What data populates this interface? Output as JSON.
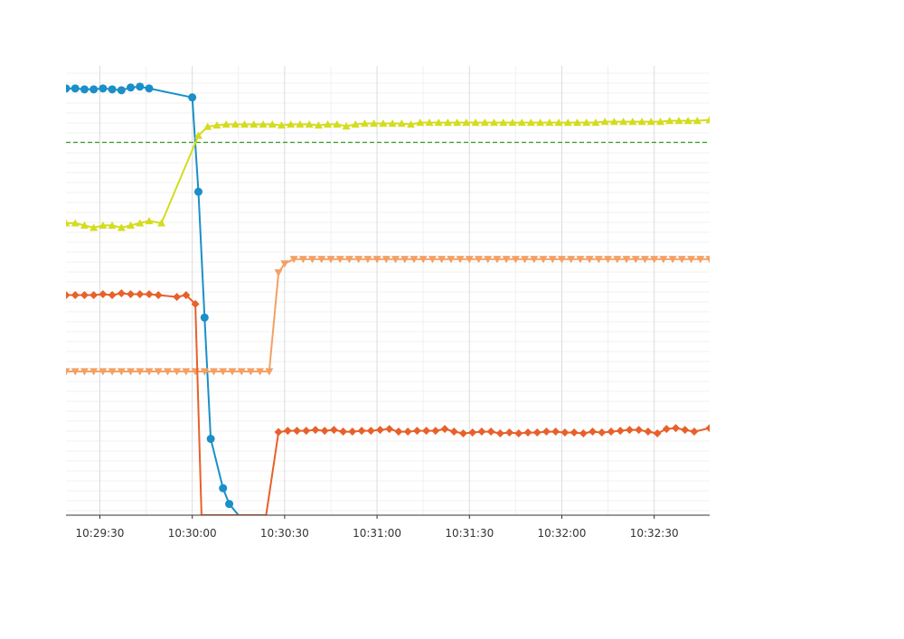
{
  "chart_data": {
    "type": "line",
    "title": "",
    "xlabel": "",
    "ylabel": "",
    "x_tick_labels": [
      "10:29:30",
      "10:30:00",
      "10:30:30",
      "10:31:00",
      "10:31:30",
      "10:32:00",
      "10:32:30"
    ],
    "x_range": [
      "10:29:19",
      "10:32:48"
    ],
    "y_range": [
      0,
      100
    ],
    "grid": true,
    "legend": "none",
    "reference_line": {
      "value": 83,
      "color": "#3a9a2a",
      "style": "dashed"
    },
    "series": [
      {
        "color": "#1a8fc9",
        "marker": "circle",
        "points": [
          [
            "10:29:19",
            95.0
          ],
          [
            "10:29:22",
            95.0
          ],
          [
            "10:29:25",
            94.8
          ],
          [
            "10:29:28",
            94.8
          ],
          [
            "10:29:31",
            95.0
          ],
          [
            "10:29:34",
            94.8
          ],
          [
            "10:29:37",
            94.6
          ],
          [
            "10:29:40",
            95.2
          ],
          [
            "10:29:43",
            95.4
          ],
          [
            "10:29:46",
            95.0
          ],
          [
            "10:30:00",
            93.0
          ],
          [
            "10:30:02",
            72.0
          ],
          [
            "10:30:04",
            44.0
          ],
          [
            "10:30:06",
            17.0
          ],
          [
            "10:30:10",
            6.0
          ],
          [
            "10:30:12",
            2.5
          ],
          [
            "10:30:15",
            0
          ]
        ]
      },
      {
        "color": "#d4dc1c",
        "marker": "triangle-up",
        "points": [
          [
            "10:29:19",
            65.0
          ],
          [
            "10:29:22",
            65.0
          ],
          [
            "10:29:25",
            64.5
          ],
          [
            "10:29:28",
            64.0
          ],
          [
            "10:29:31",
            64.5
          ],
          [
            "10:29:34",
            64.5
          ],
          [
            "10:29:37",
            64.0
          ],
          [
            "10:29:40",
            64.5
          ],
          [
            "10:29:43",
            65.0
          ],
          [
            "10:29:46",
            65.5
          ],
          [
            "10:29:50",
            65.0
          ],
          [
            "10:30:02",
            84.5
          ],
          [
            "10:30:05",
            86.5
          ],
          [
            "10:30:08",
            86.8
          ],
          [
            "10:30:11",
            87.0
          ],
          [
            "10:30:14",
            87.0
          ],
          [
            "10:30:17",
            87.0
          ],
          [
            "10:30:20",
            87.0
          ],
          [
            "10:30:23",
            87.0
          ],
          [
            "10:30:26",
            87.0
          ],
          [
            "10:30:29",
            86.8
          ],
          [
            "10:30:32",
            87.0
          ],
          [
            "10:30:35",
            87.0
          ],
          [
            "10:30:38",
            87.0
          ],
          [
            "10:30:41",
            86.8
          ],
          [
            "10:30:44",
            87.0
          ],
          [
            "10:30:47",
            87.0
          ],
          [
            "10:30:50",
            86.6
          ],
          [
            "10:30:53",
            87.0
          ],
          [
            "10:30:56",
            87.2
          ],
          [
            "10:30:59",
            87.2
          ],
          [
            "10:31:02",
            87.2
          ],
          [
            "10:31:05",
            87.2
          ],
          [
            "10:31:08",
            87.2
          ],
          [
            "10:31:11",
            87.0
          ],
          [
            "10:31:14",
            87.4
          ],
          [
            "10:31:17",
            87.4
          ],
          [
            "10:31:20",
            87.4
          ],
          [
            "10:31:23",
            87.4
          ],
          [
            "10:31:26",
            87.4
          ],
          [
            "10:31:29",
            87.4
          ],
          [
            "10:31:32",
            87.4
          ],
          [
            "10:31:35",
            87.4
          ],
          [
            "10:31:38",
            87.4
          ],
          [
            "10:31:41",
            87.4
          ],
          [
            "10:31:44",
            87.4
          ],
          [
            "10:31:47",
            87.4
          ],
          [
            "10:31:50",
            87.4
          ],
          [
            "10:31:53",
            87.4
          ],
          [
            "10:31:56",
            87.4
          ],
          [
            "10:31:59",
            87.4
          ],
          [
            "10:32:02",
            87.4
          ],
          [
            "10:32:05",
            87.4
          ],
          [
            "10:32:08",
            87.4
          ],
          [
            "10:32:11",
            87.4
          ],
          [
            "10:32:14",
            87.6
          ],
          [
            "10:32:17",
            87.6
          ],
          [
            "10:32:20",
            87.6
          ],
          [
            "10:32:23",
            87.6
          ],
          [
            "10:32:26",
            87.6
          ],
          [
            "10:32:29",
            87.6
          ],
          [
            "10:32:32",
            87.6
          ],
          [
            "10:32:35",
            87.8
          ],
          [
            "10:32:38",
            87.8
          ],
          [
            "10:32:41",
            87.8
          ],
          [
            "10:32:44",
            87.8
          ],
          [
            "10:32:48",
            88.0
          ]
        ]
      },
      {
        "color": "#f4a064",
        "marker": "triangle-down",
        "points": [
          [
            "10:29:19",
            32.0
          ],
          [
            "10:29:22",
            32.0
          ],
          [
            "10:29:25",
            32.0
          ],
          [
            "10:29:28",
            32.0
          ],
          [
            "10:29:31",
            32.0
          ],
          [
            "10:29:34",
            32.0
          ],
          [
            "10:29:37",
            32.0
          ],
          [
            "10:29:40",
            32.0
          ],
          [
            "10:29:43",
            32.0
          ],
          [
            "10:29:46",
            32.0
          ],
          [
            "10:29:49",
            32.0
          ],
          [
            "10:29:52",
            32.0
          ],
          [
            "10:29:55",
            32.0
          ],
          [
            "10:29:58",
            32.0
          ],
          [
            "10:30:01",
            32.0
          ],
          [
            "10:30:04",
            32.0
          ],
          [
            "10:30:07",
            32.0
          ],
          [
            "10:30:10",
            32.0
          ],
          [
            "10:30:13",
            32.0
          ],
          [
            "10:30:16",
            32.0
          ],
          [
            "10:30:19",
            32.0
          ],
          [
            "10:30:22",
            32.0
          ],
          [
            "10:30:25",
            32.0
          ],
          [
            "10:30:28",
            54.0
          ],
          [
            "10:30:30",
            56.0
          ],
          [
            "10:30:33",
            57.0
          ],
          [
            "10:30:36",
            57.0
          ],
          [
            "10:30:39",
            57.0
          ],
          [
            "10:30:42",
            57.0
          ],
          [
            "10:30:45",
            57.0
          ],
          [
            "10:30:48",
            57.0
          ],
          [
            "10:30:51",
            57.0
          ],
          [
            "10:30:54",
            57.0
          ],
          [
            "10:30:57",
            57.0
          ],
          [
            "10:31:00",
            57.0
          ],
          [
            "10:31:03",
            57.0
          ],
          [
            "10:31:06",
            57.0
          ],
          [
            "10:31:09",
            57.0
          ],
          [
            "10:31:12",
            57.0
          ],
          [
            "10:31:15",
            57.0
          ],
          [
            "10:31:18",
            57.0
          ],
          [
            "10:31:21",
            57.0
          ],
          [
            "10:31:24",
            57.0
          ],
          [
            "10:31:27",
            57.0
          ],
          [
            "10:31:30",
            57.0
          ],
          [
            "10:31:33",
            57.0
          ],
          [
            "10:31:36",
            57.0
          ],
          [
            "10:31:39",
            57.0
          ],
          [
            "10:31:42",
            57.0
          ],
          [
            "10:31:45",
            57.0
          ],
          [
            "10:31:48",
            57.0
          ],
          [
            "10:31:51",
            57.0
          ],
          [
            "10:31:54",
            57.0
          ],
          [
            "10:31:57",
            57.0
          ],
          [
            "10:32:00",
            57.0
          ],
          [
            "10:32:03",
            57.0
          ],
          [
            "10:32:06",
            57.0
          ],
          [
            "10:32:09",
            57.0
          ],
          [
            "10:32:12",
            57.0
          ],
          [
            "10:32:15",
            57.0
          ],
          [
            "10:32:18",
            57.0
          ],
          [
            "10:32:21",
            57.0
          ],
          [
            "10:32:24",
            57.0
          ],
          [
            "10:32:27",
            57.0
          ],
          [
            "10:32:30",
            57.0
          ],
          [
            "10:32:33",
            57.0
          ],
          [
            "10:32:36",
            57.0
          ],
          [
            "10:32:39",
            57.0
          ],
          [
            "10:32:42",
            57.0
          ],
          [
            "10:32:45",
            57.0
          ],
          [
            "10:32:48",
            57.0
          ]
        ]
      },
      {
        "color": "#e8602a",
        "marker": "diamond",
        "points": [
          [
            "10:29:19",
            49.0
          ],
          [
            "10:29:22",
            49.0
          ],
          [
            "10:29:25",
            49.0
          ],
          [
            "10:29:28",
            49.0
          ],
          [
            "10:29:31",
            49.2
          ],
          [
            "10:29:34",
            49.0
          ],
          [
            "10:29:37",
            49.4
          ],
          [
            "10:29:40",
            49.2
          ],
          [
            "10:29:43",
            49.2
          ],
          [
            "10:29:46",
            49.2
          ],
          [
            "10:29:49",
            49.0
          ],
          [
            "10:29:55",
            48.6
          ],
          [
            "10:29:58",
            49.0
          ],
          [
            "10:30:01",
            47.0
          ],
          [
            "10:30:03",
            0
          ],
          [
            "10:30:24",
            0
          ],
          [
            "10:30:28",
            18.5
          ],
          [
            "10:30:31",
            18.8
          ],
          [
            "10:30:34",
            18.8
          ],
          [
            "10:30:37",
            18.8
          ],
          [
            "10:30:40",
            19.0
          ],
          [
            "10:30:43",
            18.8
          ],
          [
            "10:30:46",
            19.0
          ],
          [
            "10:30:49",
            18.6
          ],
          [
            "10:30:52",
            18.6
          ],
          [
            "10:30:55",
            18.8
          ],
          [
            "10:30:58",
            18.8
          ],
          [
            "10:31:01",
            19.0
          ],
          [
            "10:31:04",
            19.2
          ],
          [
            "10:31:07",
            18.6
          ],
          [
            "10:31:10",
            18.6
          ],
          [
            "10:31:13",
            18.8
          ],
          [
            "10:31:16",
            18.8
          ],
          [
            "10:31:19",
            18.8
          ],
          [
            "10:31:22",
            19.2
          ],
          [
            "10:31:25",
            18.6
          ],
          [
            "10:31:28",
            18.2
          ],
          [
            "10:31:31",
            18.4
          ],
          [
            "10:31:34",
            18.6
          ],
          [
            "10:31:37",
            18.6
          ],
          [
            "10:31:40",
            18.2
          ],
          [
            "10:31:43",
            18.4
          ],
          [
            "10:31:46",
            18.2
          ],
          [
            "10:31:49",
            18.4
          ],
          [
            "10:31:52",
            18.4
          ],
          [
            "10:31:55",
            18.6
          ],
          [
            "10:31:58",
            18.6
          ],
          [
            "10:32:01",
            18.4
          ],
          [
            "10:32:04",
            18.4
          ],
          [
            "10:32:07",
            18.2
          ],
          [
            "10:32:10",
            18.6
          ],
          [
            "10:32:13",
            18.4
          ],
          [
            "10:32:16",
            18.6
          ],
          [
            "10:32:19",
            18.8
          ],
          [
            "10:32:22",
            19.0
          ],
          [
            "10:32:25",
            19.0
          ],
          [
            "10:32:28",
            18.6
          ],
          [
            "10:32:31",
            18.2
          ],
          [
            "10:32:34",
            19.2
          ],
          [
            "10:32:37",
            19.4
          ],
          [
            "10:32:40",
            19.0
          ],
          [
            "10:32:43",
            18.6
          ],
          [
            "10:32:48",
            19.4
          ]
        ]
      }
    ]
  }
}
